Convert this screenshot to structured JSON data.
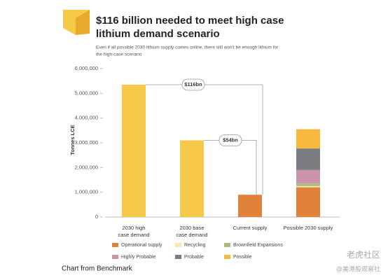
{
  "chart_data": {
    "type": "bar",
    "title_lines": [
      "$116 billion needed to meet high case",
      "lithium demand scenario"
    ],
    "subtitle_lines": [
      "Even if all possible 2030 lithium supply comes online, there still won't be enough lithium for",
      "the high-case scenario"
    ],
    "y_label": "Tonnes LCE",
    "categories": [
      [
        "2030 high",
        "case demand"
      ],
      [
        "2030 base",
        "case demand"
      ],
      [
        "Current supply"
      ],
      [
        "Possible 2030 supply"
      ]
    ],
    "values": [
      5350000,
      3100000,
      900000,
      null
    ],
    "colors": [
      "#f6c94a",
      "#f6c94a",
      "#e0823a",
      null
    ],
    "series": [
      {
        "name": "Operational supply",
        "color": "#e0823a",
        "values": [
          null,
          null,
          null,
          1200000
        ]
      },
      {
        "name": "Recycling",
        "color": "#f8e8b4",
        "values": [
          null,
          null,
          null,
          50000
        ]
      },
      {
        "name": "Brownfield Expansions",
        "color": "#a8bf7c",
        "values": [
          null,
          null,
          null,
          100000
        ]
      },
      {
        "name": "Highly Probable",
        "color": "#c995aa",
        "values": [
          null,
          null,
          null,
          550000
        ]
      },
      {
        "name": "Probable",
        "color": "#7b7b82",
        "values": [
          null,
          null,
          null,
          870000
        ]
      },
      {
        "name": "Possible",
        "color": "#f6b83e",
        "values": [
          null,
          null,
          null,
          780000
        ]
      }
    ],
    "annotations": [
      "$116bn",
      "$54bn"
    ],
    "ylim": [
      0,
      6000000
    ],
    "yticks": [
      0,
      {
        "value": 1000000,
        "label": "1,000,000"
      },
      {
        "value": 2000000,
        "label": "2,000,000"
      },
      {
        "value": 3000000,
        "label": "3,000,000"
      },
      {
        "value": 4000000,
        "label": "4,000,000"
      },
      {
        "value": 5000000,
        "label": "5,000,000"
      },
      {
        "value": 6000000,
        "label": "6,000,000"
      }
    ],
    "caption": "Chart from Benchmark",
    "watermarks": [
      "老虎社区",
      "@美港股观察社"
    ]
  }
}
